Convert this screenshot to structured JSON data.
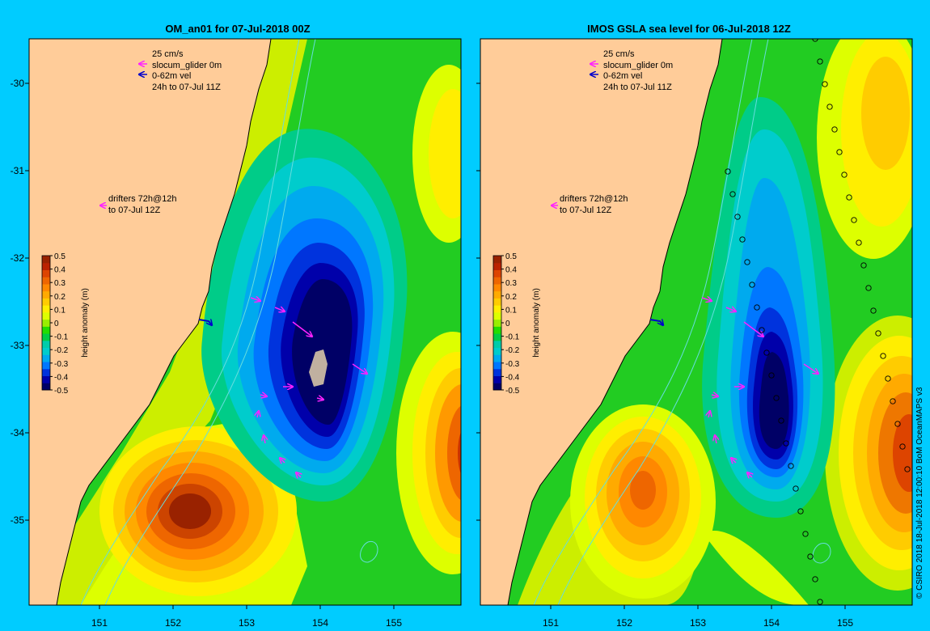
{
  "colors": {
    "background": "#00ccff",
    "land": "#ffcc99",
    "coast": "#b8a898",
    "isobath": "#66dddd",
    "current_arrow": "#ff22ff",
    "vel_arrow": "#0000cc"
  },
  "panels": [
    {
      "title": "OM_an01 for 07-Jul-2018 00Z",
      "legend": {
        "scale": "25 cm/s",
        "glider": "slocum_glider 0m",
        "vel": "0-62m vel",
        "window": "24h to 07-Jul 11Z",
        "drifters_line1": "drifters 72h@12h",
        "drifters_line2": "to 07-Jul 12Z"
      }
    },
    {
      "title": "IMOS GSLA sea level  for 06-Jul-2018 12Z",
      "legend": {
        "scale": "25 cm/s",
        "glider": "slocum_glider 0m",
        "vel": "0-62m vel",
        "window": "24h to 07-Jul 11Z",
        "drifters_line1": "drifters 72h@12h",
        "drifters_line2": "to 07-Jul 12Z"
      }
    }
  ],
  "axes": {
    "lon_ticks": [
      "151",
      "152",
      "153",
      "154",
      "155"
    ],
    "lat_ticks": [
      "-30",
      "-31",
      "-32",
      "-33",
      "-34",
      "-35"
    ]
  },
  "colorbar": {
    "label": "height anomaly (m)",
    "ticks": [
      "0.5",
      "0.4",
      "0.3",
      "0.2",
      "0.1",
      "0",
      "-0.1",
      "-0.2",
      "-0.3",
      "-0.4",
      "-0.5"
    ],
    "colors": [
      "#000066",
      "#0000aa",
      "#0033dd",
      "#0077ff",
      "#00aaee",
      "#00cccc",
      "#00ccaa",
      "#00cc44",
      "#22dd00",
      "#99ee00",
      "#ddff00",
      "#ffee00",
      "#ffcc00",
      "#ffaa00",
      "#ff8800",
      "#ee6600",
      "#dd4400",
      "#bb2200",
      "#992200"
    ]
  },
  "credit": "© CSIRO 2018   18-Jul-2018 12:00:10 BoM OceanMAPS v3"
}
